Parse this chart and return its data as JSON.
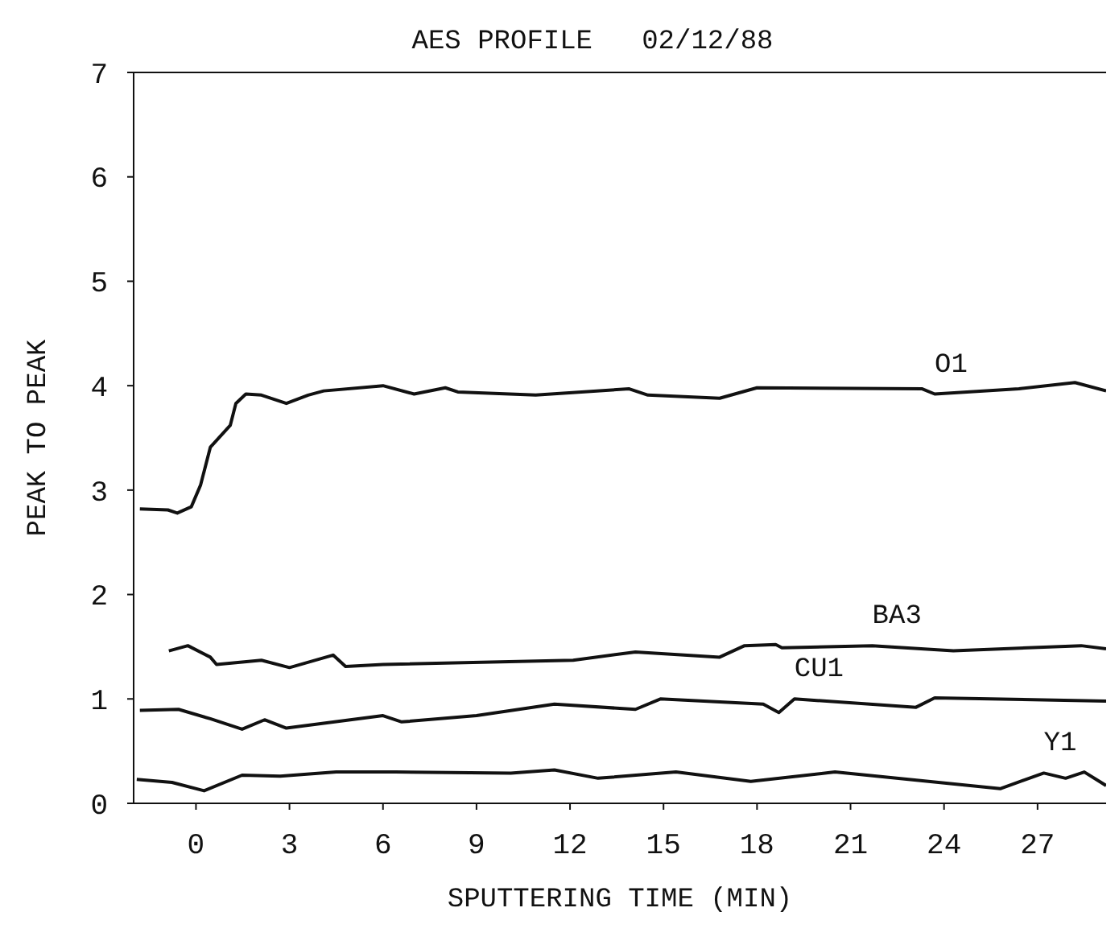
{
  "chart_data": {
    "type": "line",
    "title": "AES PROFILE   02/12/88",
    "xlabel": "SPUTTERING  TIME (MIN)",
    "ylabel": "PEAK TO PEAK",
    "xlim": [
      -2,
      29.2
    ],
    "xticks": [
      0,
      3,
      6,
      9,
      12,
      15,
      18,
      21,
      24,
      27
    ],
    "ylim": [
      0,
      7
    ],
    "yticks": [
      0,
      1,
      2,
      3,
      4,
      5,
      6,
      7
    ],
    "grid": false,
    "legend": false,
    "marker": "none",
    "line_style": "solid",
    "series": [
      {
        "name": "O1",
        "color": "#111111",
        "x": [
          -1.8,
          -0.9,
          -0.6,
          -0.15,
          0.15,
          0.46,
          1.1,
          1.28,
          1.6,
          2.1,
          2.9,
          3.6,
          4.1,
          6.0,
          7.0,
          8.0,
          8.4,
          10.9,
          13.9,
          14.5,
          16.8,
          18.0,
          23.3,
          23.7,
          26.4,
          28.2,
          29.2
        ],
        "values": [
          2.82,
          2.81,
          2.78,
          2.84,
          3.05,
          3.41,
          3.62,
          3.83,
          3.92,
          3.91,
          3.83,
          3.91,
          3.95,
          4.0,
          3.92,
          3.98,
          3.94,
          3.91,
          3.97,
          3.91,
          3.88,
          3.98,
          3.97,
          3.92,
          3.97,
          4.03,
          3.95
        ]
      },
      {
        "name": "BA3",
        "color": "#111111",
        "x": [
          -0.87,
          -0.26,
          0.46,
          0.66,
          2.1,
          3.0,
          4.4,
          4.8,
          6.0,
          12.1,
          14.1,
          16.8,
          17.6,
          18.6,
          18.8,
          21.7,
          24.3,
          28.4,
          29.2
        ],
        "values": [
          1.46,
          1.51,
          1.4,
          1.33,
          1.37,
          1.3,
          1.42,
          1.31,
          1.33,
          1.37,
          1.45,
          1.4,
          1.51,
          1.52,
          1.49,
          1.51,
          1.46,
          1.51,
          1.48
        ]
      },
      {
        "name": "CU1",
        "color": "#111111",
        "x": [
          -1.8,
          -0.56,
          0.46,
          1.48,
          2.2,
          2.9,
          6.0,
          6.6,
          9.0,
          11.5,
          14.1,
          14.9,
          18.2,
          18.7,
          19.2,
          23.1,
          23.7,
          29.2
        ],
        "values": [
          0.89,
          0.9,
          0.81,
          0.71,
          0.8,
          0.72,
          0.84,
          0.78,
          0.84,
          0.95,
          0.9,
          1.0,
          0.95,
          0.87,
          1.0,
          0.92,
          1.01,
          0.98
        ]
      },
      {
        "name": "Y1",
        "color": "#111111",
        "x": [
          -1.9,
          -0.77,
          0.26,
          1.48,
          2.7,
          4.5,
          6.4,
          10.1,
          11.5,
          12.9,
          15.4,
          17.8,
          20.5,
          25.8,
          27.2,
          27.9,
          28.5,
          29.2
        ],
        "values": [
          0.23,
          0.2,
          0.12,
          0.27,
          0.26,
          0.3,
          0.3,
          0.29,
          0.32,
          0.24,
          0.3,
          0.21,
          0.3,
          0.14,
          0.29,
          0.24,
          0.3,
          0.17
        ]
      }
    ]
  }
}
